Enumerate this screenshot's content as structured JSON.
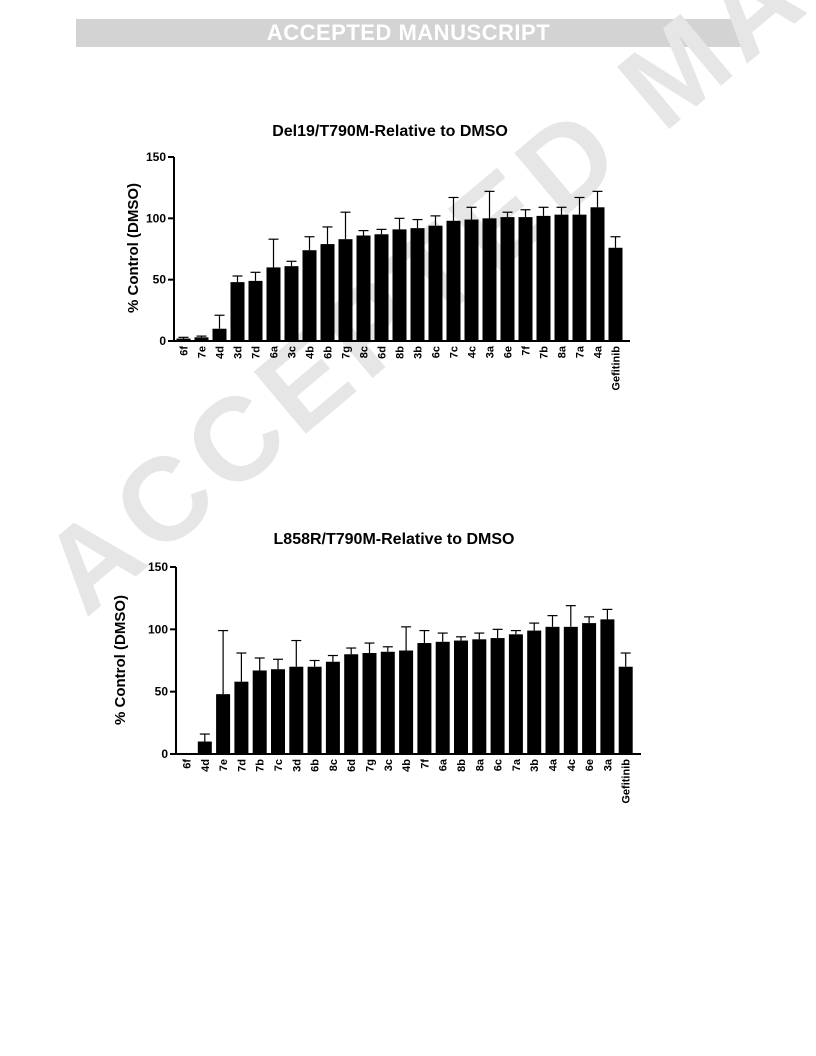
{
  "banner": {
    "text": "ACCEPTED MANUSCRIPT"
  },
  "watermark": {
    "text": "ACCEPTED MANUSCRIPT"
  },
  "chart_data": [
    {
      "type": "bar",
      "title": "Del19/T790M-Relative to DMSO",
      "xlabel": "",
      "ylabel": "% Control (DMSO)",
      "ylim": [
        0,
        150
      ],
      "yticks": [
        0,
        50,
        100,
        150
      ],
      "bar_color": "#000000",
      "categories": [
        "6f",
        "7e",
        "4d",
        "3d",
        "7d",
        "6a",
        "3c",
        "4b",
        "6b",
        "7g",
        "8c",
        "6d",
        "8b",
        "3b",
        "6c",
        "7c",
        "4c",
        "3a",
        "6e",
        "7f",
        "7b",
        "8a",
        "7a",
        "4a",
        "Gefitinib"
      ],
      "values": [
        2,
        3,
        10,
        48,
        49,
        60,
        61,
        74,
        79,
        83,
        86,
        87,
        91,
        92,
        94,
        98,
        99,
        100,
        101,
        101,
        102,
        103,
        103,
        109,
        76
      ],
      "errors": [
        1,
        1,
        11,
        5,
        7,
        23,
        4,
        11,
        14,
        22,
        4,
        4,
        9,
        7,
        8,
        19,
        10,
        22,
        4,
        6,
        7,
        6,
        14,
        13,
        9
      ]
    },
    {
      "type": "bar",
      "title": "L858R/T790M-Relative to DMSO",
      "xlabel": "",
      "ylabel": "% Control (DMSO)",
      "ylim": [
        0,
        150
      ],
      "yticks": [
        0,
        50,
        100,
        150
      ],
      "bar_color": "#000000",
      "categories": [
        "6f",
        "4d",
        "7e",
        "7d",
        "7b",
        "7c",
        "3d",
        "6b",
        "8c",
        "6d",
        "7g",
        "3c",
        "4b",
        "7f",
        "6a",
        "8b",
        "8a",
        "6c",
        "7a",
        "3b",
        "4a",
        "4c",
        "6e",
        "3a",
        "Gefitinib"
      ],
      "values": [
        0,
        10,
        48,
        58,
        67,
        68,
        70,
        70,
        74,
        80,
        81,
        82,
        83,
        89,
        90,
        91,
        92,
        93,
        96,
        99,
        102,
        102,
        105,
        108,
        70
      ],
      "errors": [
        0,
        6,
        51,
        23,
        10,
        8,
        21,
        5,
        5,
        5,
        8,
        4,
        19,
        10,
        7,
        3,
        5,
        7,
        3,
        6,
        9,
        17,
        5,
        8,
        11
      ]
    }
  ]
}
